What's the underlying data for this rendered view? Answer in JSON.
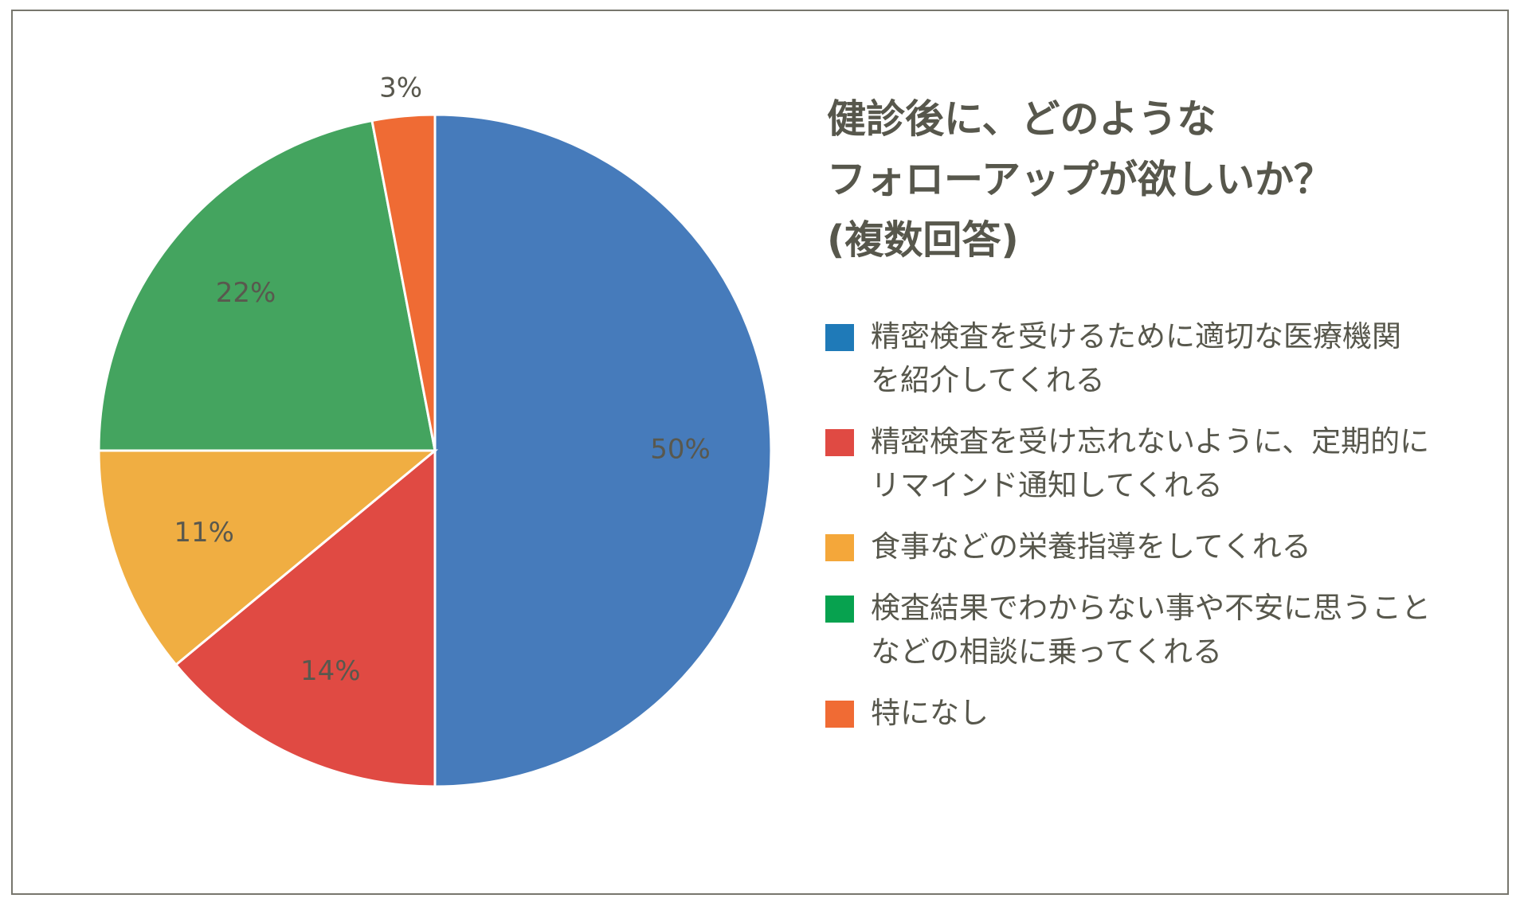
{
  "chart_data": {
    "type": "pie",
    "title": "健診後に、どのようなフォローアップが欲しいか？(複数回答)",
    "title_lines": [
      "健診後に、どのような",
      "フォローアップが欲しいか？",
      "(複数回答)"
    ],
    "legend_position": "right",
    "slices": [
      {
        "label": "精密検査を受けるために適切な医療機関を紹介してくれる",
        "label_lines": [
          "精密検査を受けるために適切な医療機関",
          "を紹介してくれる"
        ],
        "value": 50,
        "value_label": "50%",
        "color": "#467bbb",
        "legend_color": "#1f7ab8"
      },
      {
        "label": "精密検査を受け忘れないように、定期的にリマインド通知してくれる",
        "label_lines": [
          "精密検査を受け忘れないように、定期的に",
          "リマインド通知してくれる"
        ],
        "value": 14,
        "value_label": "14%",
        "color": "#e04a43",
        "legend_color": "#e04a43"
      },
      {
        "label": "食事などの栄養指導をしてくれる",
        "label_lines": [
          "食事などの栄養指導をしてくれる"
        ],
        "value": 11,
        "value_label": "11%",
        "color": "#f0ae42",
        "legend_color": "#f4a73a"
      },
      {
        "label": "検査結果でわからない事や不安に思うことなどの相談に乗ってくれる",
        "label_lines": [
          "検査結果でわからない事や不安に思うこと",
          "などの相談に乗ってくれる"
        ],
        "value": 22,
        "value_label": "22%",
        "color": "#44a45f",
        "legend_color": "#07a24f"
      },
      {
        "label": "特になし",
        "label_lines": [
          "特になし"
        ],
        "value": 3,
        "value_label": "3%",
        "color": "#ef6b34",
        "legend_color": "#f06b34"
      }
    ]
  }
}
